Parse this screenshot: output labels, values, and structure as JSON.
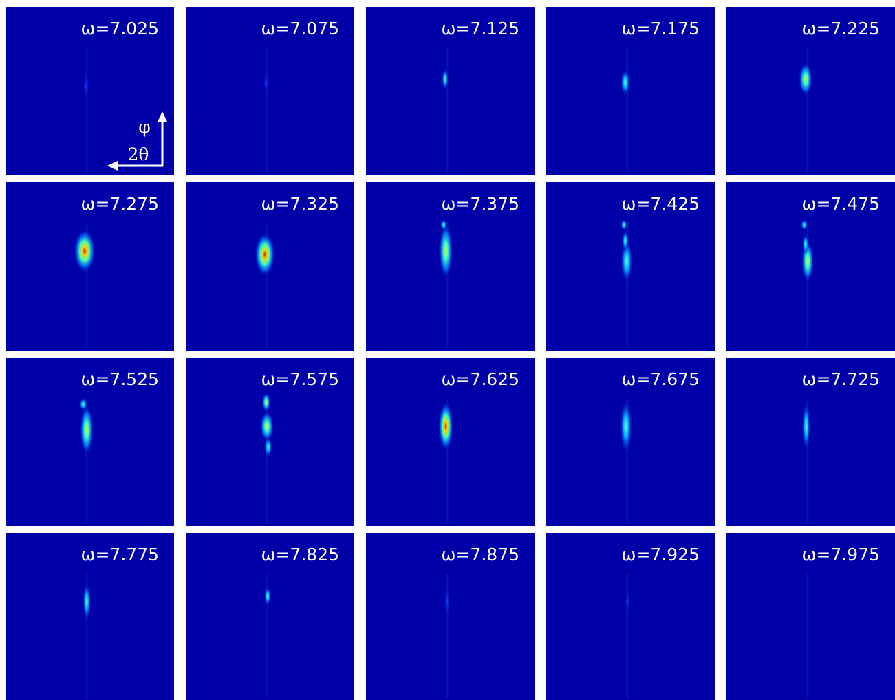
{
  "panels": [
    {
      "label": "ω=7.025"
    },
    {
      "label": "ω=7.075"
    },
    {
      "label": "ω=7.125"
    },
    {
      "label": "ω=7.175"
    },
    {
      "label": "ω=7.225"
    },
    {
      "label": "ω=7.275"
    },
    {
      "label": "ω=7.325"
    },
    {
      "label": "ω=7.375"
    },
    {
      "label": "ω=7.425"
    },
    {
      "label": "ω=7.475"
    },
    {
      "label": "ω=7.525"
    },
    {
      "label": "ω=7.575"
    },
    {
      "label": "ω=7.625"
    },
    {
      "label": "ω=7.675"
    },
    {
      "label": "ω=7.725"
    },
    {
      "label": "ω=7.775"
    },
    {
      "label": "ω=7.825"
    },
    {
      "label": "ω=7.875"
    },
    {
      "label": "ω=7.925"
    },
    {
      "label": "ω=7.975"
    }
  ],
  "axes": {
    "vertical": "φ",
    "horizontal": "2θ"
  }
}
